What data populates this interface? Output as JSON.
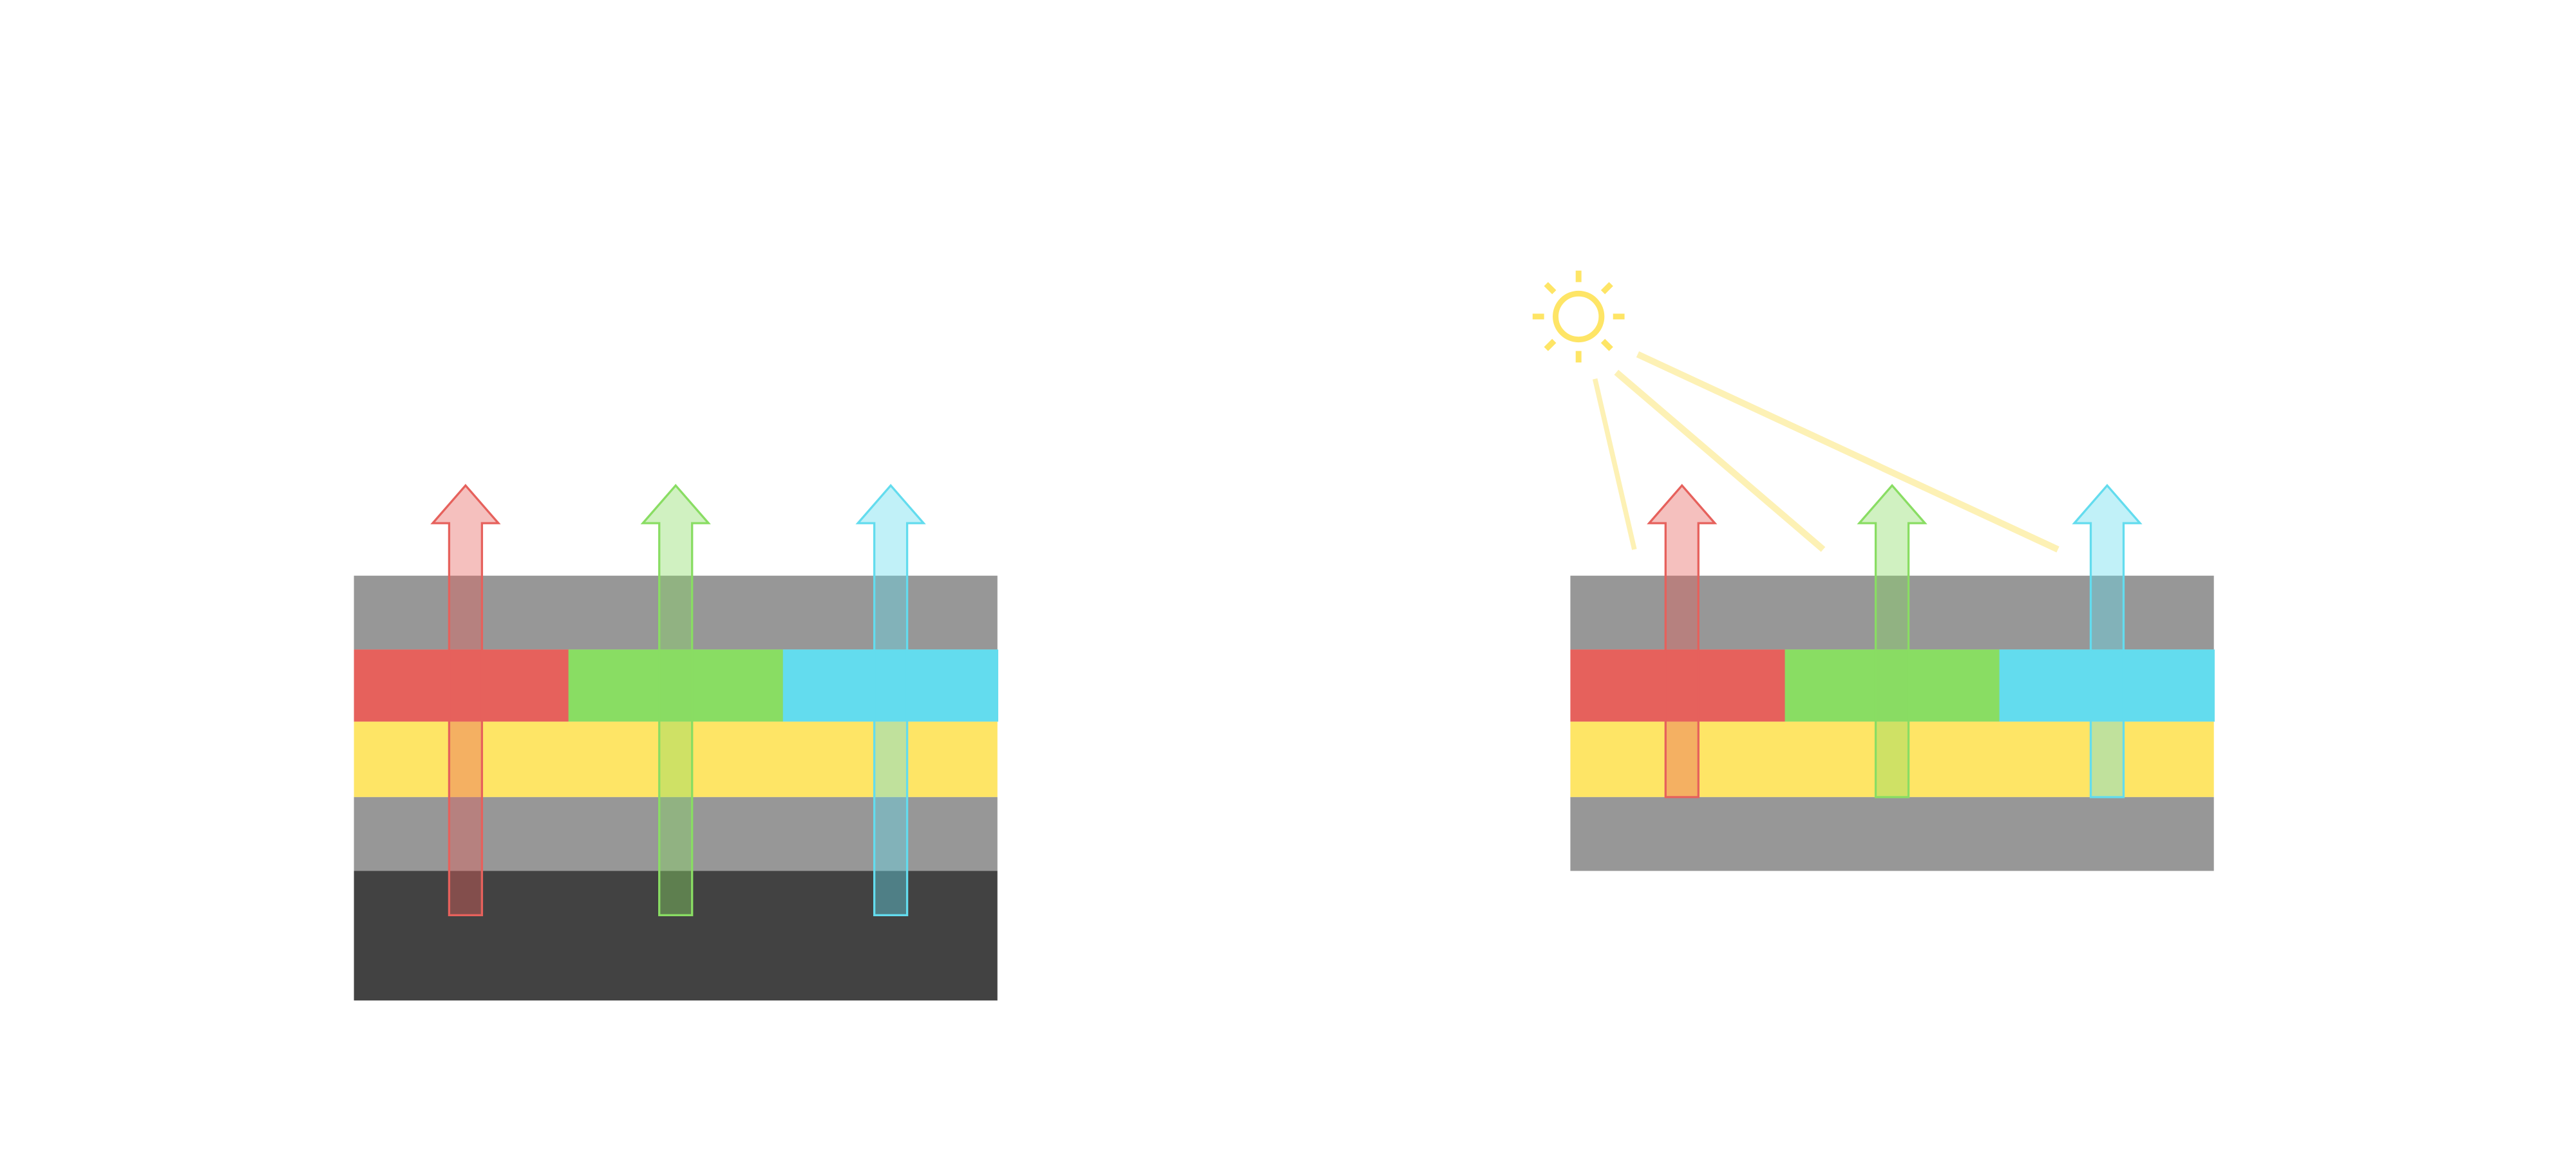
{
  "colors": {
    "background": "#ffffff",
    "gray_layer": "#979797",
    "dark_layer": "#424242",
    "yellow_layer": "#fee566",
    "red": "#e6615c",
    "green": "#89dd63",
    "cyan": "#63dcee",
    "sun": "#fee566",
    "sun_beam": "#fdf1b5"
  },
  "diagrams": [
    {
      "name": "left-stack",
      "layers": [
        "gray",
        "color-filter",
        "yellow",
        "gray",
        "dark"
      ],
      "arrows": [
        "red",
        "green",
        "cyan"
      ],
      "has_sun": false
    },
    {
      "name": "right-stack",
      "layers": [
        "gray",
        "color-filter",
        "yellow",
        "gray"
      ],
      "arrows": [
        "red",
        "green",
        "cyan"
      ],
      "has_sun": true
    }
  ]
}
